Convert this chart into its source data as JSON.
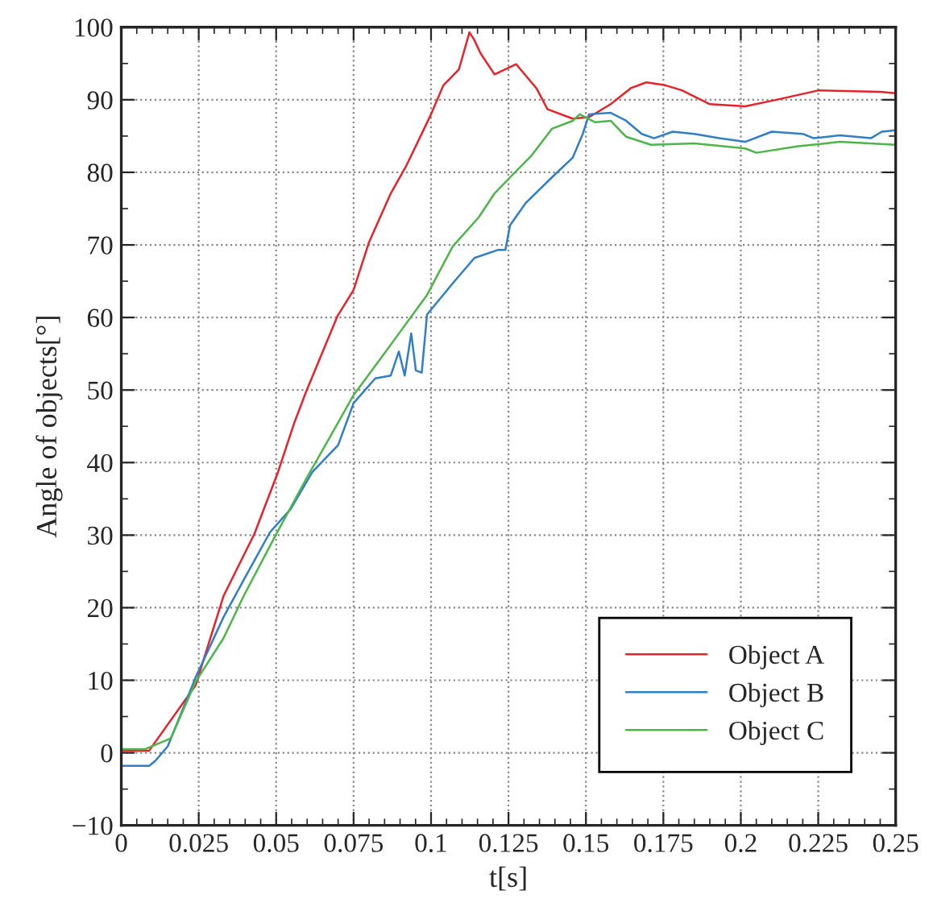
{
  "chart_data": {
    "type": "line",
    "xlabel": "t[s]",
    "ylabel": "Angle of objects[°]",
    "xlim": [
      0,
      0.25
    ],
    "ylim": [
      -10,
      100
    ],
    "xticks": [
      0,
      0.025,
      0.05,
      0.075,
      0.1,
      0.125,
      0.15,
      0.175,
      0.2,
      0.225,
      0.25
    ],
    "yticks": [
      {
        "value": -10,
        "label": "−10"
      },
      0,
      10,
      20,
      30,
      40,
      50,
      60,
      70,
      80,
      90,
      100
    ],
    "grid": true,
    "legend": "bottom right",
    "line_style": "solid",
    "marker": "none",
    "series": [
      {
        "name": "Object A",
        "color": "#e8222b",
        "x": [
          0,
          0.009,
          0.024,
          0.033,
          0.043,
          0.0506,
          0.0557,
          0.0597,
          0.0698,
          0.075,
          0.08,
          0.087,
          0.092,
          0.1,
          0.104,
          0.109,
          0.1124,
          0.1139,
          0.116,
          0.1205,
          0.1275,
          0.134,
          0.1376,
          0.1457,
          0.151,
          0.158,
          0.1645,
          0.1695,
          0.1756,
          0.181,
          0.19,
          0.2014,
          0.2115,
          0.2252,
          0.245,
          0.25
        ],
        "values": [
          0.3,
          0.3,
          9.3,
          21.6,
          30.2,
          38.7,
          45.3,
          49.8,
          60.2,
          63.8,
          70.4,
          77.1,
          80.9,
          88,
          92,
          94.2,
          99.3,
          98.3,
          96.4,
          93.5,
          94.9,
          91.6,
          88.7,
          87.4,
          87.6,
          89.4,
          91.6,
          92.4,
          92,
          91.3,
          89.4,
          89.1,
          90,
          91.3,
          91.1,
          90.9
        ]
      },
      {
        "name": "Object B",
        "color": "#2f7fc8",
        "x": [
          0,
          0.009,
          0.011,
          0.015,
          0.024,
          0.033,
          0.0395,
          0.048,
          0.0547,
          0.0617,
          0.07,
          0.075,
          0.082,
          0.087,
          0.0896,
          0.0915,
          0.0936,
          0.0951,
          0.097,
          0.0987,
          0.107,
          0.114,
          0.1215,
          0.124,
          0.1255,
          0.1306,
          0.139,
          0.1457,
          0.149,
          0.151,
          0.158,
          0.163,
          0.168,
          0.172,
          0.178,
          0.185,
          0.193,
          0.2014,
          0.21,
          0.22,
          0.2235,
          0.232,
          0.242,
          0.2455,
          0.25
        ],
        "values": [
          -1.8,
          -1.8,
          -1.1,
          0.9,
          10.4,
          18.7,
          23.8,
          30.4,
          33.6,
          38.7,
          42.4,
          48.2,
          51.6,
          52,
          55.3,
          52,
          57.8,
          52.7,
          52.4,
          60.4,
          64.7,
          68.2,
          69.3,
          69.3,
          72.7,
          75.8,
          79.3,
          82,
          85.3,
          88,
          88.2,
          87.1,
          85.3,
          84.7,
          85.6,
          85.3,
          84.7,
          84.2,
          85.6,
          85.3,
          84.7,
          85.1,
          84.7,
          85.6,
          85.8
        ]
      },
      {
        "name": "Object C",
        "color": "#4cb648",
        "x": [
          0,
          0.0076,
          0.011,
          0.016,
          0.024,
          0.033,
          0.0395,
          0.0496,
          0.06,
          0.0668,
          0.075,
          0.0835,
          0.09,
          0.0987,
          0.107,
          0.1154,
          0.1205,
          0.1255,
          0.1326,
          0.139,
          0.1457,
          0.148,
          0.153,
          0.158,
          0.163,
          0.171,
          0.185,
          0.2014,
          0.205,
          0.2186,
          0.232,
          0.25
        ],
        "values": [
          0.5,
          0.5,
          1.1,
          2,
          9.8,
          15.8,
          21.6,
          29.8,
          38,
          43.1,
          49.3,
          54.2,
          58,
          63.1,
          69.8,
          73.8,
          77.1,
          79.3,
          82.4,
          86,
          87.1,
          88,
          86.9,
          87.1,
          84.9,
          83.8,
          84,
          83.3,
          82.7,
          83.6,
          84.2,
          83.8
        ]
      }
    ]
  }
}
